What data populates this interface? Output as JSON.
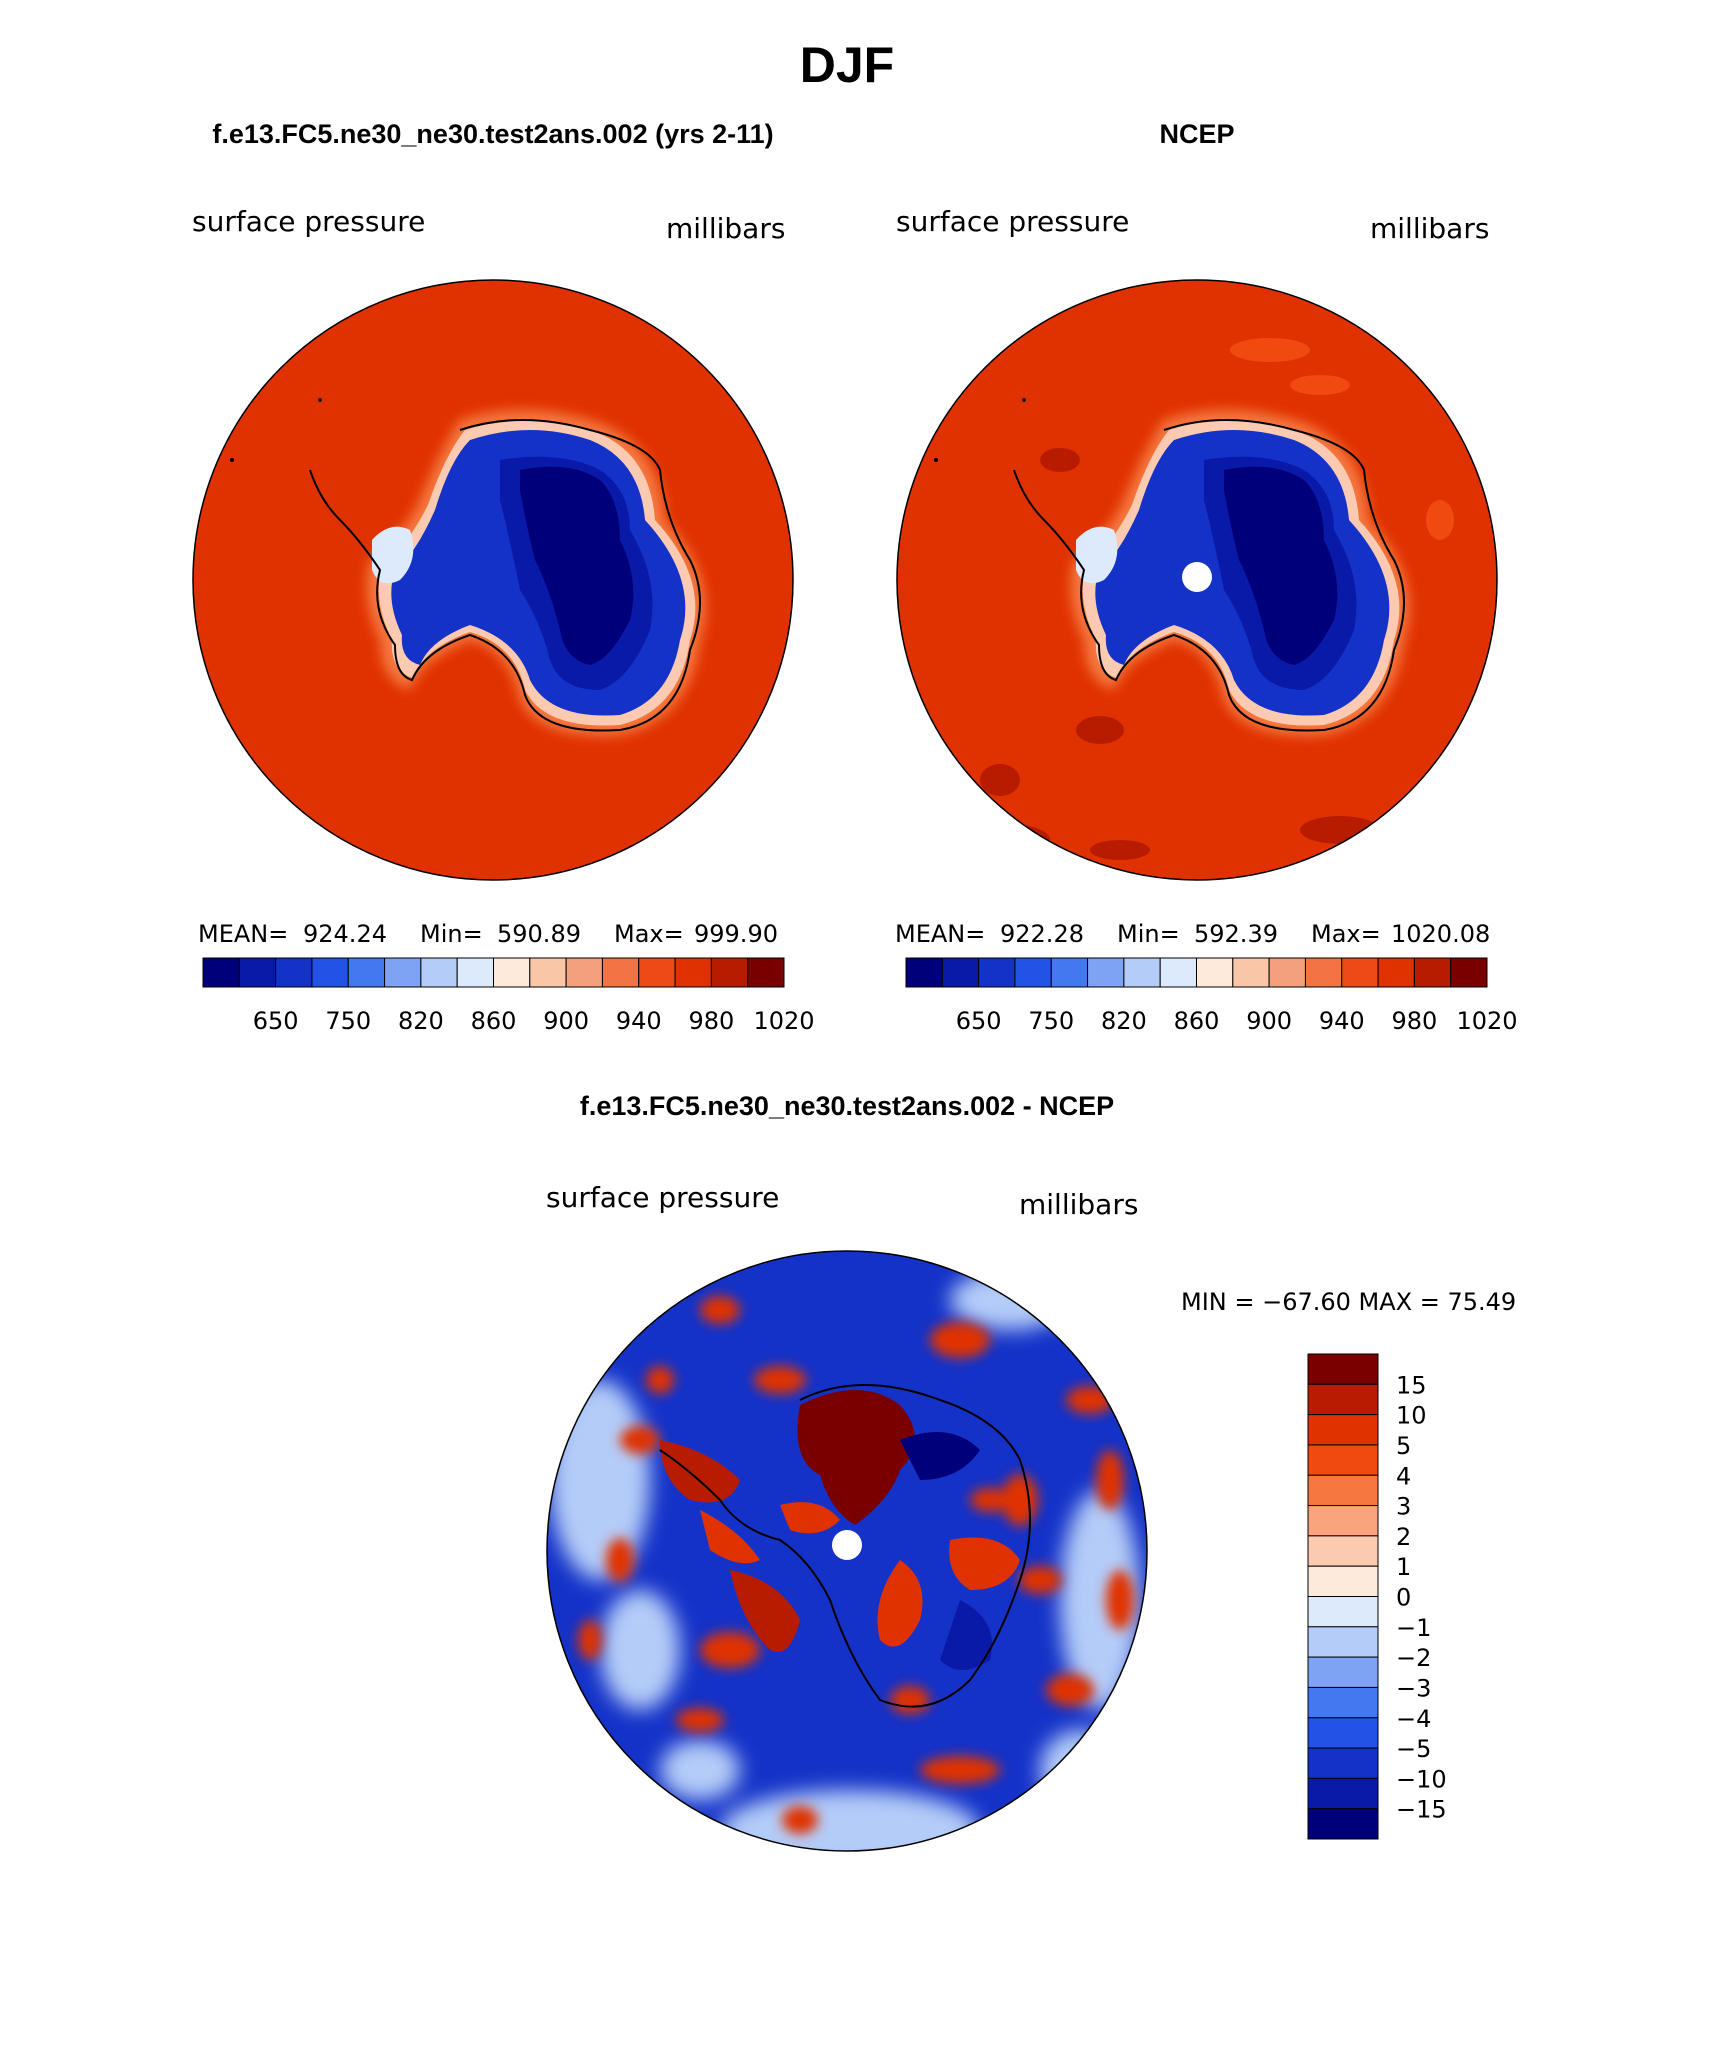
{
  "page_title": "DJF",
  "panels": [
    {
      "id": "model",
      "case_title": "f.e13.FC5.ne30_ne30.test2ans.002 (yrs 2-11)",
      "left_label": "surface pressure",
      "right_label": "millibars",
      "stats": {
        "mean_label": "MEAN=",
        "mean": "924.24",
        "min_label": "Min=",
        "min": "590.89",
        "max_label": "Max=",
        "max": "999.90"
      },
      "has_pole_hole": false
    },
    {
      "id": "obs",
      "case_title": "NCEP",
      "left_label": "surface pressure",
      "right_label": "millibars",
      "stats": {
        "mean_label": "MEAN=",
        "mean": "922.28",
        "min_label": "Min=",
        "min": "592.39",
        "max_label": "Max=",
        "max": "1020.08"
      },
      "has_pole_hole": true
    }
  ],
  "horizontal_colorbar": {
    "colors": [
      "#00007a",
      "#0a1aa8",
      "#1432c8",
      "#2252e6",
      "#4478f0",
      "#7ea2f4",
      "#b4ccf8",
      "#dceafc",
      "#fdeadb",
      "#f9c6a8",
      "#f5a07c",
      "#f27444",
      "#ee4a18",
      "#e03200",
      "#b81c00",
      "#7a0000"
    ],
    "tick_labels": [
      "650",
      "750",
      "820",
      "860",
      "900",
      "940",
      "980",
      "1020"
    ]
  },
  "difference": {
    "title": "f.e13.FC5.ne30_ne30.test2ans.002 - NCEP",
    "left_label": "surface pressure",
    "right_label": "millibars",
    "minmax_text": "MIN = −67.60 MAX =   75.49",
    "colorbar": {
      "colors": [
        "#7a0000",
        "#b81c00",
        "#e03200",
        "#f04a10",
        "#f67840",
        "#f9a47c",
        "#fbcab0",
        "#fdeadb",
        "#dceafc",
        "#b4ccf8",
        "#7ea2f4",
        "#4478f0",
        "#2252e6",
        "#1432c8",
        "#0a1aa8",
        "#00007a"
      ],
      "tick_labels": [
        "15",
        "10",
        "5",
        "4",
        "3",
        "2",
        "1",
        "0",
        "−1",
        "−2",
        "−3",
        "−4",
        "−5",
        "−10",
        "−15"
      ]
    }
  },
  "colors": {
    "ocean_high": "#e03200",
    "ice_low": "#0a1aa8",
    "pole_hole": "#ffffff"
  }
}
